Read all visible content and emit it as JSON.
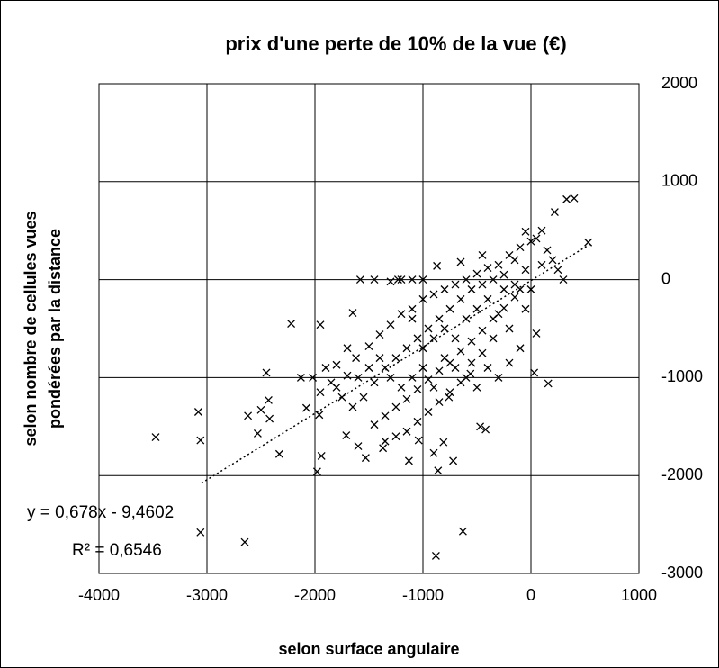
{
  "chart_data": {
    "type": "scatter",
    "title": "prix d'une perte de 10% de la vue (€)",
    "x_label": "selon surface angulaire",
    "y_label": [
      "selon nombre de cellules vues",
      "pondérées par la distance"
    ],
    "annotations": [
      "y = 0,678x - 9,4602",
      "R² = 0,6546"
    ],
    "trendline": {
      "slope": 0.678,
      "intercept": -9.4602,
      "x": [
        -3050,
        550
      ]
    },
    "color": "#000000",
    "grid": true,
    "xlim": [
      -4000,
      1000
    ],
    "xticks": [
      -4000,
      -3000,
      -2000,
      -1000,
      0,
      1000
    ],
    "ylim": [
      -3000,
      2000
    ],
    "yticks": [
      -3000,
      -2000,
      -1000,
      0,
      1000,
      2000
    ],
    "x": [
      -3475,
      -3080,
      -3060,
      -3060,
      -2650,
      -2620,
      -2530,
      -2500,
      -2450,
      -2430,
      -2420,
      -2330,
      -2220,
      -2130,
      -2080,
      -1980,
      -1950,
      -2020,
      -1960,
      -1940,
      -1650,
      -1580,
      -1450,
      -1100,
      -1230,
      -880,
      -630,
      -860,
      -720,
      -900,
      -1130,
      -1370,
      -1530,
      -1600,
      -1710,
      -1040,
      -420,
      -470,
      400,
      330,
      220,
      530,
      100,
      -50,
      300,
      160,
      30,
      -450,
      -650,
      -870,
      -1000,
      -1200,
      -1300,
      -810,
      -760,
      -560,
      -1800,
      -1700,
      -1620,
      -1500,
      -1400,
      -1300,
      -1200,
      -1100,
      -1000,
      -900,
      -800,
      -700,
      -600,
      -500,
      -400,
      -300,
      -200,
      -100,
      0,
      50,
      -150,
      -250,
      -350,
      -450,
      -550,
      -650,
      -750,
      -850,
      -950,
      -1050,
      -1150,
      -1250,
      -1350,
      -1450,
      -1800,
      -1750,
      -1650,
      -1550,
      -1450,
      -1350,
      -1250,
      -1150,
      -1050,
      -950,
      -850,
      -750,
      -650,
      -550,
      -450,
      -350,
      -250,
      -150,
      -50,
      50,
      -100,
      -200,
      -300,
      -400,
      -500,
      -600,
      -700,
      -800,
      -900,
      -1000,
      -1100,
      -1200,
      -1300,
      -1400,
      -1500,
      -1600,
      -1700,
      -1900,
      -1850,
      -1950,
      -1100,
      -1000,
      -900,
      -800,
      -700,
      -600,
      -500,
      -400,
      -300,
      -200,
      -100,
      0,
      100,
      150,
      200,
      250,
      -50,
      -150,
      -250,
      -350,
      -450,
      -550,
      -650,
      -750,
      -850,
      -950,
      -1050,
      -1150,
      -1250,
      -1350
    ],
    "values": [
      -1608,
      -1350,
      -1640,
      -2580,
      -2680,
      -1390,
      -1570,
      -1330,
      -950,
      -1230,
      -1420,
      -1780,
      -450,
      -1000,
      -1310,
      -1960,
      -460,
      -1000,
      -1380,
      -1800,
      -340,
      0,
      0,
      0,
      0,
      -2820,
      -2570,
      -1950,
      -1850,
      -1770,
      -1850,
      -1720,
      -1820,
      -1700,
      -1590,
      -1640,
      -1530,
      -1500,
      830,
      820,
      690,
      380,
      500,
      490,
      0,
      -1060,
      -950,
      250,
      180,
      140,
      0,
      0,
      -20,
      -1660,
      -1200,
      -960,
      -870,
      -980,
      -800,
      -680,
      -560,
      -460,
      -350,
      -300,
      -200,
      -150,
      -100,
      -50,
      0,
      60,
      120,
      150,
      250,
      330,
      390,
      420,
      -180,
      -290,
      -400,
      -520,
      -630,
      -730,
      -850,
      -930,
      -1020,
      -1120,
      -1220,
      -1300,
      -1390,
      -1480,
      -1100,
      -1200,
      -1300,
      -1200,
      -1050,
      -900,
      -800,
      -700,
      -600,
      -500,
      -400,
      -300,
      -200,
      -100,
      -50,
      0,
      -100,
      -50,
      -300,
      -550,
      -700,
      -850,
      -1000,
      -900,
      -1100,
      -1000,
      -900,
      -800,
      -1100,
      -900,
      -1000,
      -1100,
      -1000,
      -800,
      -900,
      -1000,
      -700,
      -900,
      -1050,
      -1150,
      -400,
      -700,
      -600,
      -500,
      -600,
      -400,
      -300,
      -200,
      -350,
      -500,
      -100,
      -100,
      150,
      300,
      200,
      100,
      100,
      200,
      50,
      -600,
      -750,
      -850,
      -1050,
      -1150,
      -1250,
      -1350,
      -1450,
      -1550,
      -1600,
      -1650
    ]
  }
}
